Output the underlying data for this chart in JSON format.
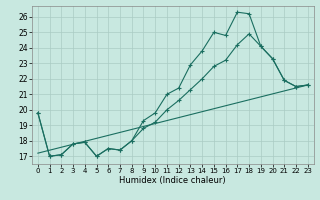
{
  "xlabel": "Humidex (Indice chaleur)",
  "bg_color": "#c8e8e0",
  "grid_color": "#aaccc4",
  "line_color": "#1a6e60",
  "xlim": [
    -0.5,
    23.5
  ],
  "ylim": [
    16.5,
    26.7
  ],
  "xticks": [
    0,
    1,
    2,
    3,
    4,
    5,
    6,
    7,
    8,
    9,
    10,
    11,
    12,
    13,
    14,
    15,
    16,
    17,
    18,
    19,
    20,
    21,
    22,
    23
  ],
  "yticks": [
    17,
    18,
    19,
    20,
    21,
    22,
    23,
    24,
    25,
    26
  ],
  "curve1_x": [
    0,
    1,
    2,
    3,
    4,
    5,
    6,
    7,
    8,
    9,
    10,
    11,
    12,
    13,
    14,
    15,
    16,
    17,
    18,
    19,
    20,
    21,
    22,
    23
  ],
  "curve1_y": [
    19.8,
    17.0,
    17.1,
    17.8,
    17.9,
    17.0,
    17.5,
    17.4,
    18.0,
    19.3,
    19.8,
    21.0,
    21.4,
    22.9,
    23.8,
    25.0,
    24.8,
    26.3,
    26.2,
    24.1,
    23.3,
    21.9,
    21.5,
    21.6
  ],
  "curve2_x": [
    0,
    1,
    2,
    3,
    4,
    5,
    6,
    7,
    8,
    9,
    10,
    11,
    12,
    13,
    14,
    15,
    16,
    17,
    18,
    19,
    20,
    21,
    22,
    23
  ],
  "curve2_y": [
    19.8,
    17.0,
    17.1,
    17.8,
    17.9,
    17.0,
    17.5,
    17.4,
    18.0,
    18.8,
    19.2,
    20.0,
    20.6,
    21.3,
    22.0,
    22.8,
    23.2,
    24.2,
    24.9,
    24.1,
    23.3,
    21.9,
    21.5,
    21.6
  ],
  "curve3_x": [
    0,
    23
  ],
  "curve3_y": [
    17.2,
    21.6
  ]
}
